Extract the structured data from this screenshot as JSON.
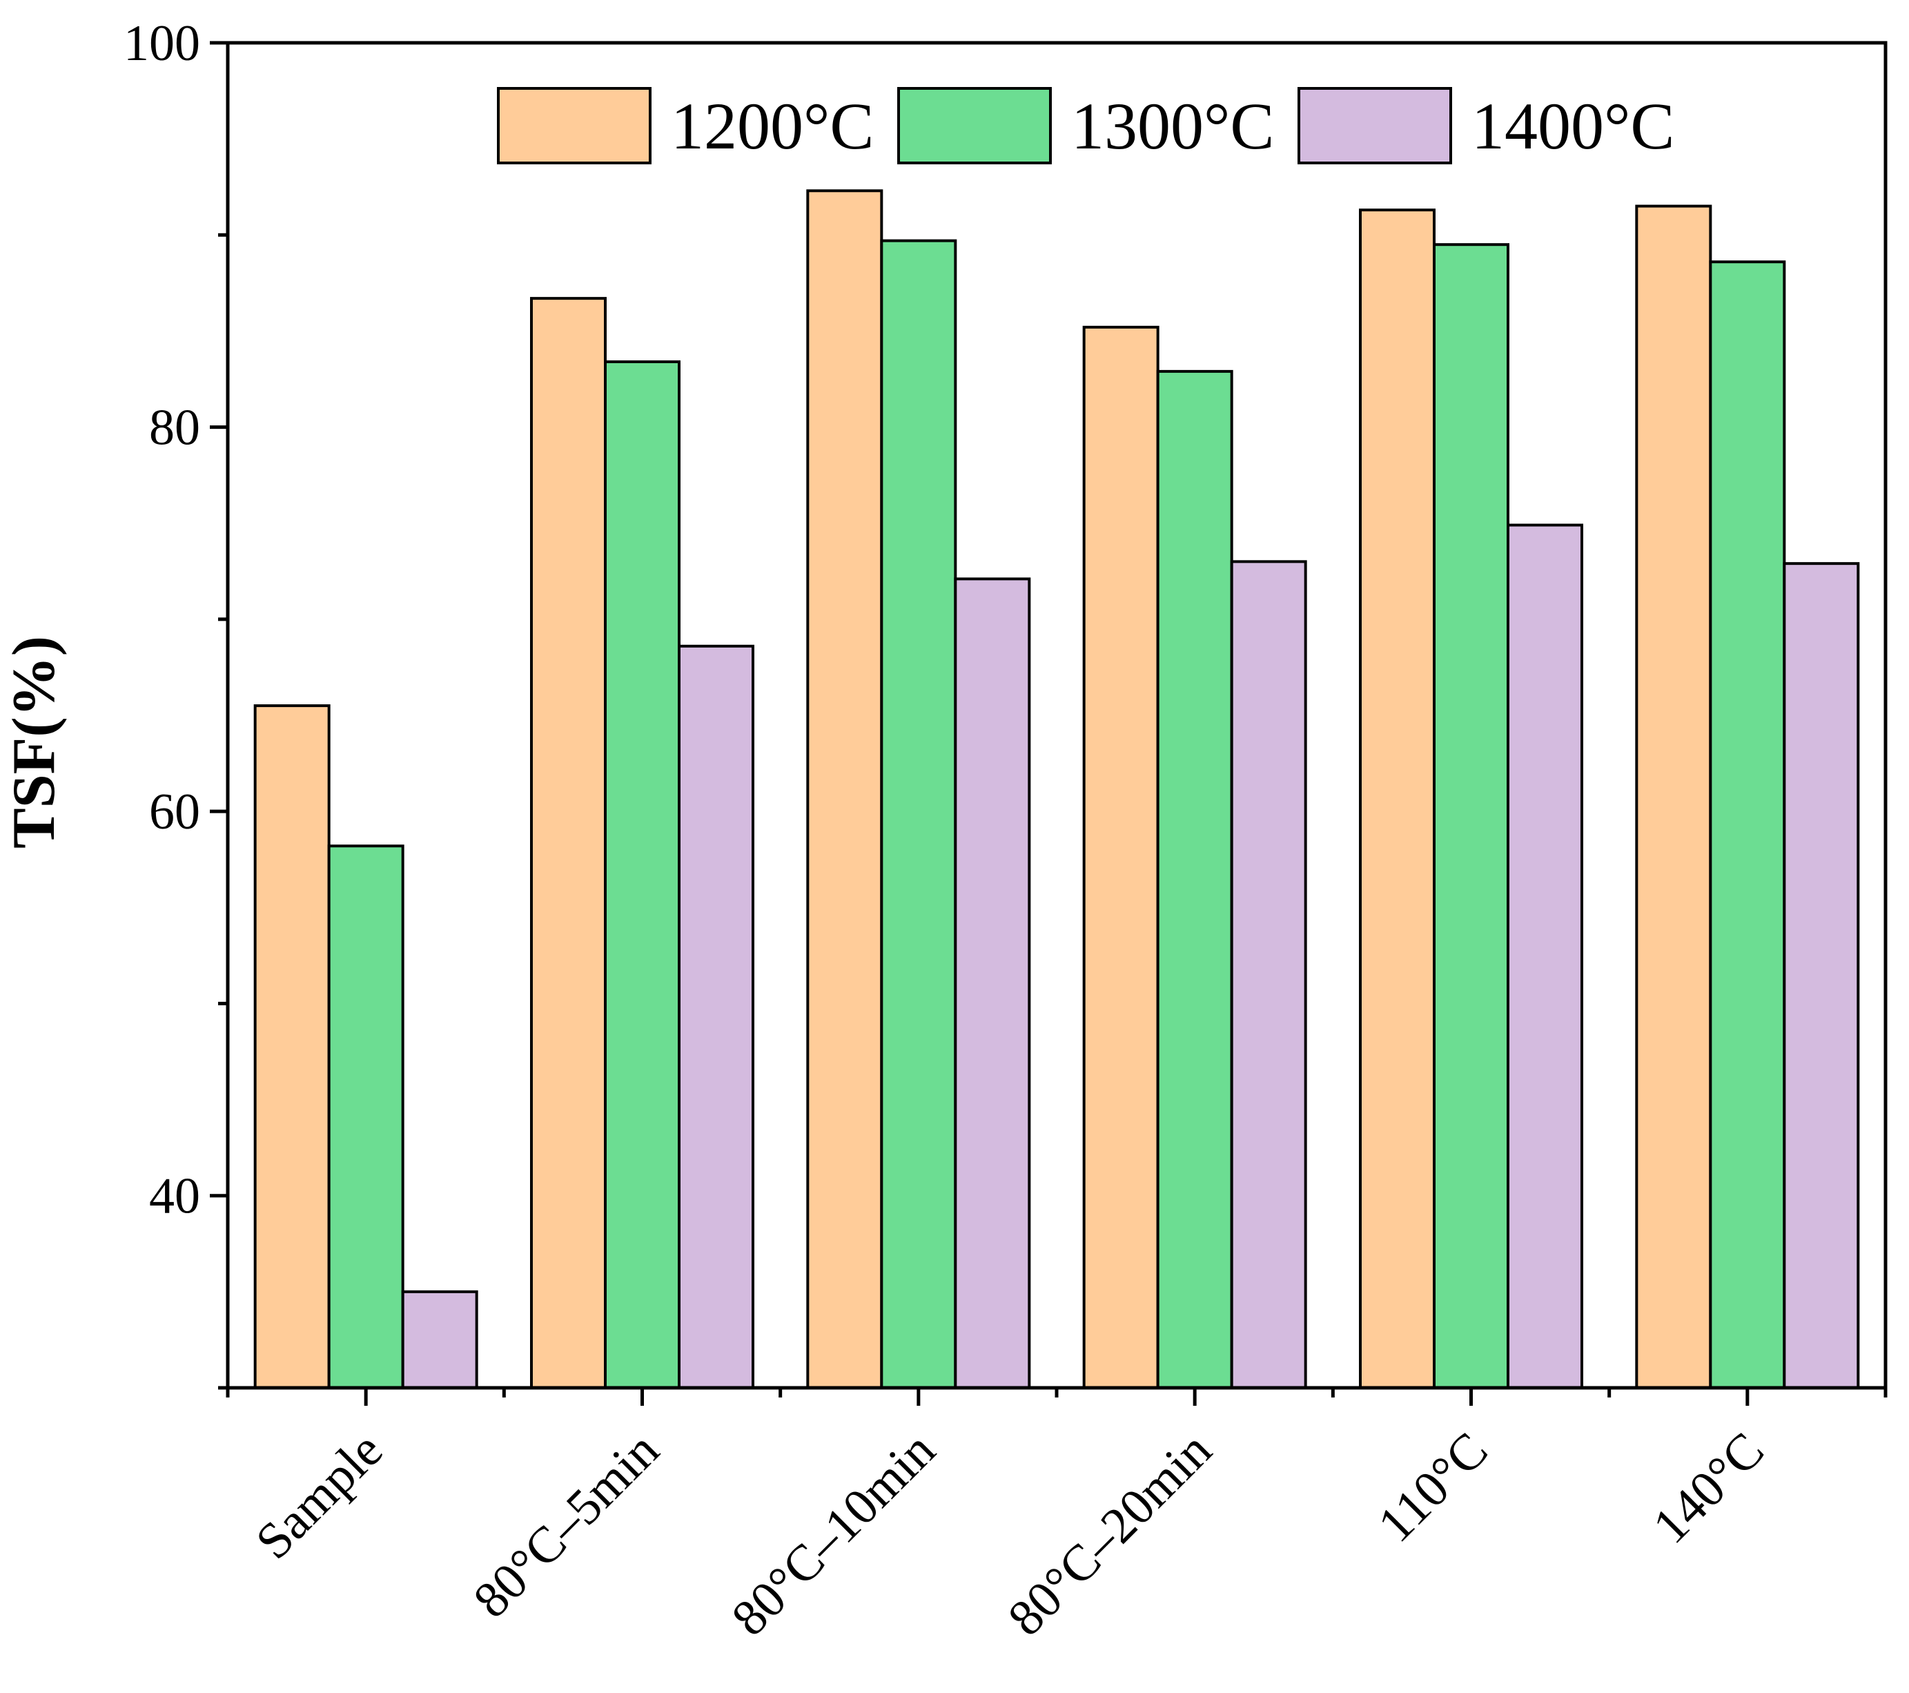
{
  "chart_data": {
    "type": "bar",
    "title": "",
    "xlabel": "",
    "ylabel": "TSF(%)",
    "ylim": [
      30,
      100
    ],
    "yticks": [
      40,
      60,
      80,
      100
    ],
    "grid": false,
    "legend_position": "top",
    "categories": [
      "Sample",
      "80°C–5min",
      "80°C–10min",
      "80°C–20min",
      "110°C",
      "140°C"
    ],
    "series": [
      {
        "name": "1200°C",
        "color": "#FFCC99",
        "values": [
          65.5,
          86.7,
          92.3,
          85.2,
          91.3,
          91.5
        ]
      },
      {
        "name": "1300°C",
        "color": "#6CDD92",
        "values": [
          58.2,
          83.4,
          89.7,
          82.9,
          89.5,
          88.6
        ]
      },
      {
        "name": "1400°C",
        "color": "#D4BBDF",
        "values": [
          35.0,
          68.6,
          72.1,
          73.0,
          74.9,
          72.9
        ]
      }
    ]
  }
}
